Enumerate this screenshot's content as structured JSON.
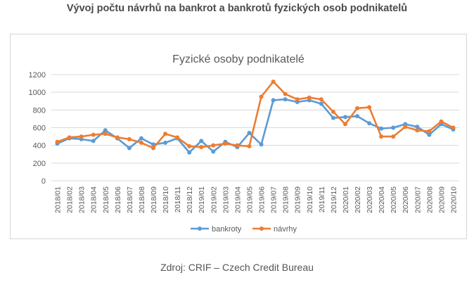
{
  "page": {
    "heading": "Vývoj počtu návrhů na bankrot a bankrotů fyzických osob podnikatelů",
    "source": "Zdroj: CRIF – Czech Credit Bureau"
  },
  "colors": {
    "bankroty": "#5b9bd5",
    "navrhy": "#ed7d31",
    "grid": "#d9d9d9",
    "axis_text": "#595959"
  },
  "chart_data": {
    "type": "line",
    "title": "Fyzické osoby podnikatelé",
    "xlabel": "",
    "ylabel": "",
    "ylim": [
      0,
      1200
    ],
    "yticks": [
      0,
      200,
      400,
      600,
      800,
      1000,
      1200
    ],
    "grid": true,
    "legend_position": "bottom",
    "categories": [
      "2018/01",
      "2018/02",
      "2018/03",
      "2018/04",
      "2018/05",
      "2018/06",
      "2018/07",
      "2018/08",
      "2018/09",
      "2018/10",
      "2018/11",
      "2018/12",
      "2019/01",
      "2019/02",
      "2019/03",
      "2019/04",
      "2019/05",
      "2019/06",
      "2019/07",
      "2019/08",
      "2019/09",
      "2019/10",
      "2019/11",
      "2019/12",
      "2020/01",
      "2020/02",
      "2020/03",
      "2020/04",
      "2020/05",
      "2020/06",
      "2020/07",
      "2020/08",
      "2020/09",
      "2020/10"
    ],
    "series": [
      {
        "name": "bankroty",
        "color": "#5b9bd5",
        "values": [
          420,
          480,
          470,
          450,
          570,
          480,
          370,
          480,
          410,
          430,
          480,
          320,
          450,
          330,
          440,
          380,
          540,
          410,
          910,
          920,
          890,
          910,
          870,
          710,
          720,
          730,
          650,
          590,
          600,
          640,
          610,
          520,
          640,
          580
        ]
      },
      {
        "name": "návrhy",
        "color": "#ed7d31",
        "values": [
          440,
          490,
          500,
          520,
          530,
          490,
          470,
          430,
          370,
          530,
          490,
          390,
          380,
          400,
          420,
          400,
          390,
          950,
          1120,
          980,
          920,
          940,
          920,
          780,
          640,
          820,
          830,
          500,
          500,
          610,
          570,
          560,
          670,
          600
        ]
      }
    ]
  }
}
